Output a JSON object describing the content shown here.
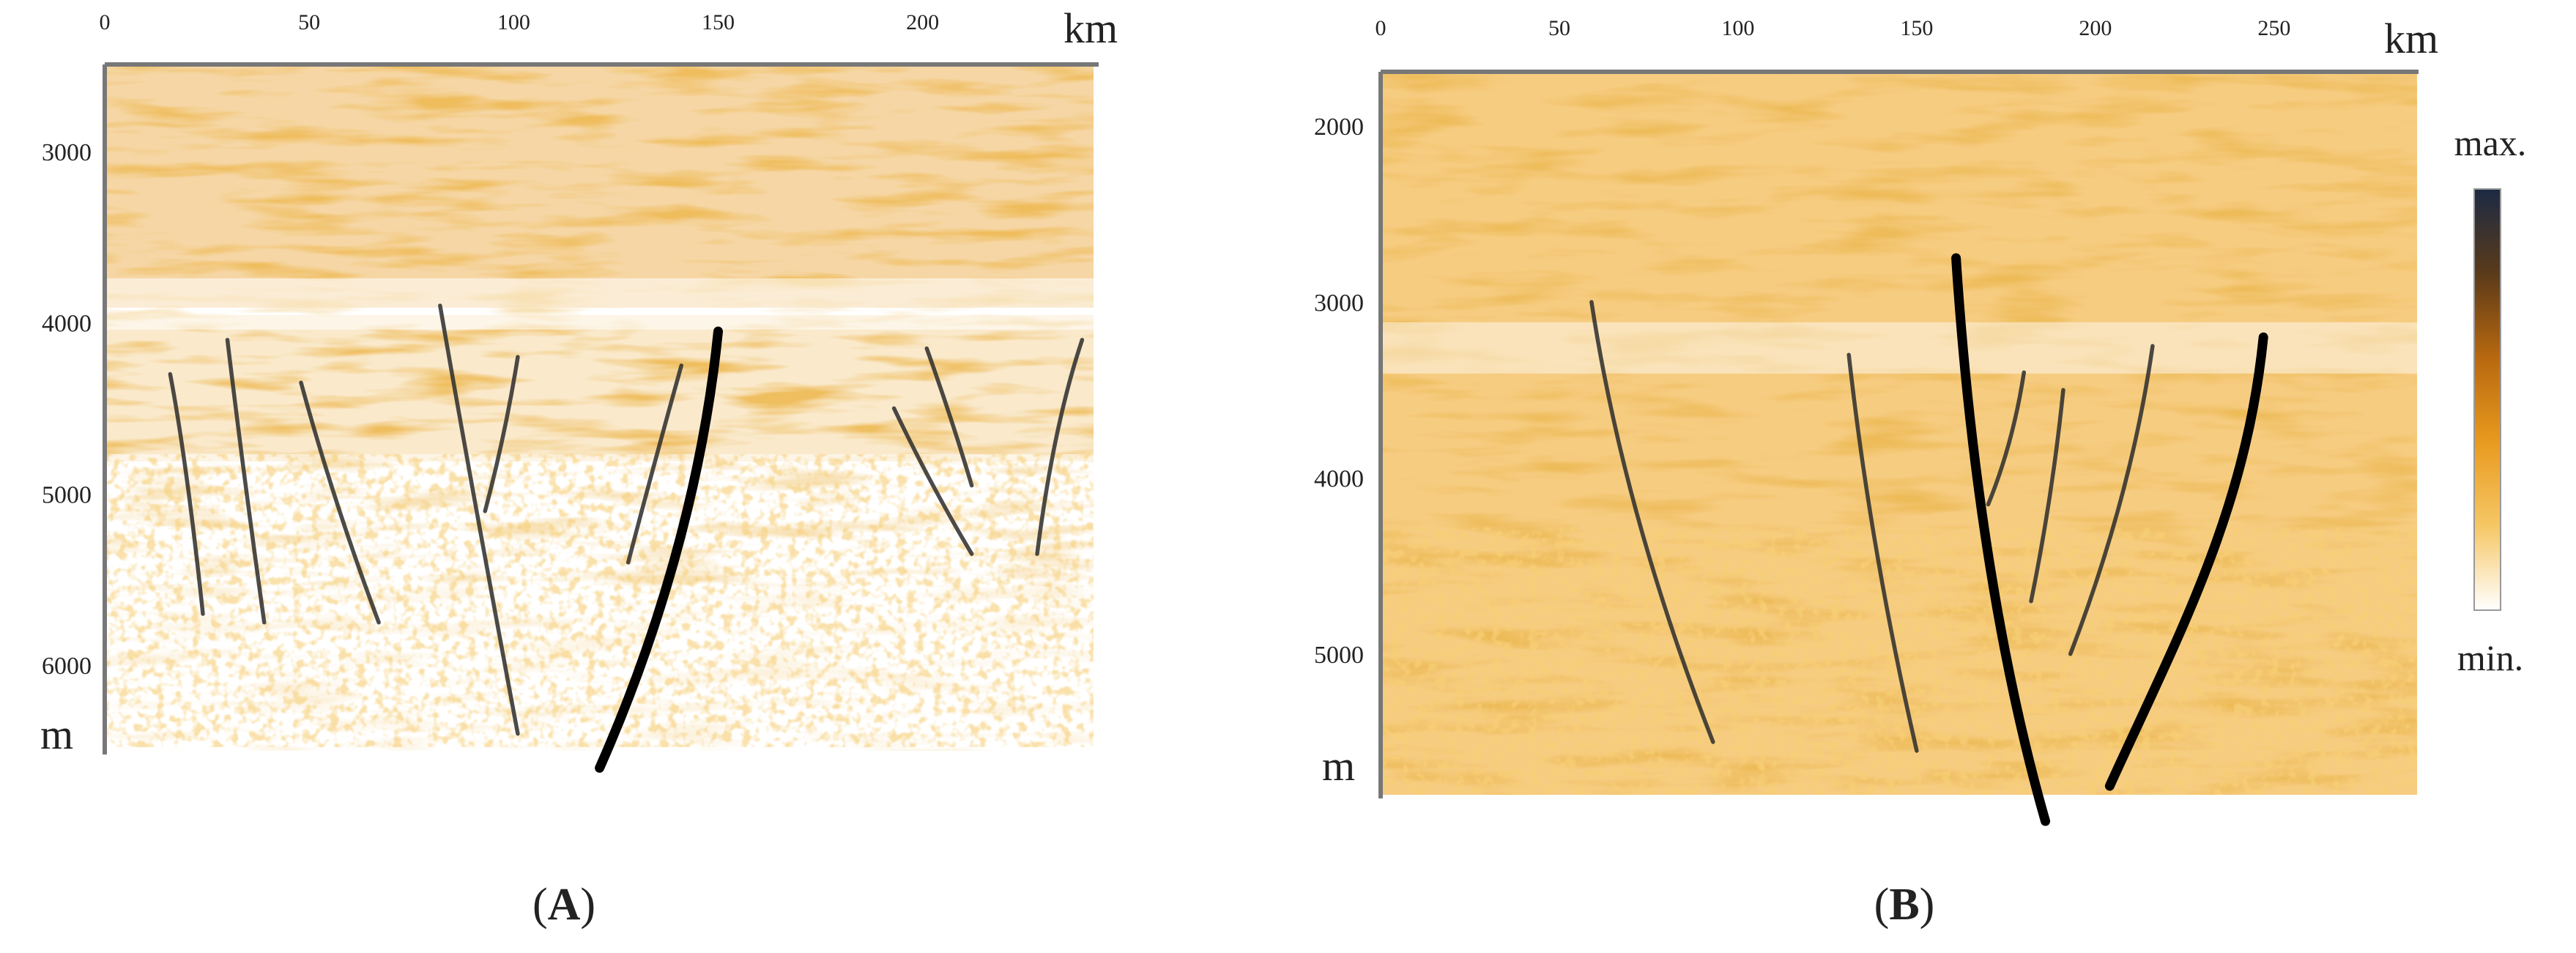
{
  "panels": [
    {
      "id": "A",
      "caption_open": "(",
      "caption_letter": "A",
      "caption_close": ")",
      "x_unit": "km",
      "y_unit": "m",
      "x_ticks": [
        0,
        50,
        100,
        150,
        200
      ],
      "y_ticks": [
        3000,
        4000,
        5000,
        6000
      ],
      "x_range": [
        0,
        240
      ],
      "y_range": [
        2500,
        6500
      ],
      "faults": [
        {
          "weight": "thin",
          "points": [
            [
              16,
              4300
            ],
            [
              20,
              4800
            ],
            [
              24,
              5700
            ]
          ]
        },
        {
          "weight": "thin",
          "points": [
            [
              30,
              4100
            ],
            [
              34,
              4900
            ],
            [
              39,
              5750
            ]
          ]
        },
        {
          "weight": "thin",
          "points": [
            [
              48,
              4350
            ],
            [
              56,
              5050
            ],
            [
              67,
              5750
            ]
          ]
        },
        {
          "weight": "thin",
          "points": [
            [
              82,
              3900
            ],
            [
              90,
              5000
            ],
            [
              101,
              6400
            ]
          ]
        },
        {
          "weight": "thin",
          "points": [
            [
              101,
              4200
            ],
            [
              98,
              4650
            ],
            [
              93,
              5100
            ]
          ]
        },
        {
          "weight": "thin",
          "points": [
            [
              141,
              4250
            ],
            [
              134,
              4850
            ],
            [
              128,
              5400
            ]
          ]
        },
        {
          "weight": "thick",
          "points": [
            [
              150,
              4050
            ],
            [
              146,
              5000
            ],
            [
              134,
              5900
            ],
            [
              121,
              6600
            ]
          ]
        },
        {
          "weight": "thin",
          "points": [
            [
              193,
              4500
            ],
            [
              202,
              4950
            ],
            [
              212,
              5350
            ]
          ]
        },
        {
          "weight": "thin",
          "points": [
            [
              201,
              4150
            ],
            [
              207,
              4550
            ],
            [
              212,
              4950
            ]
          ]
        },
        {
          "weight": "thin",
          "points": [
            [
              239,
              4100
            ],
            [
              232,
              4600
            ],
            [
              228,
              5350
            ]
          ]
        }
      ]
    },
    {
      "id": "B",
      "caption_open": "(",
      "caption_letter": "B",
      "caption_close": ")",
      "x_unit": "km",
      "y_unit": "m",
      "x_ticks": [
        0,
        50,
        100,
        150,
        200,
        250
      ],
      "y_ticks": [
        2000,
        3000,
        4000,
        5000
      ],
      "x_range": [
        0,
        290
      ],
      "y_range": [
        1700,
        5800
      ],
      "faults": [
        {
          "weight": "thin",
          "points": [
            [
              59,
              3000
            ],
            [
              68,
              4200
            ],
            [
              93,
              5500
            ]
          ]
        },
        {
          "weight": "thin",
          "points": [
            [
              131,
              3300
            ],
            [
              137,
              4400
            ],
            [
              150,
              5550
            ]
          ]
        },
        {
          "weight": "thick",
          "points": [
            [
              161,
              2750
            ],
            [
              165,
              4000
            ],
            [
              174,
              5100
            ],
            [
              186,
              5950
            ]
          ]
        },
        {
          "weight": "thin",
          "points": [
            [
              180,
              3400
            ],
            [
              177,
              3800
            ],
            [
              170,
              4150
            ]
          ]
        },
        {
          "weight": "thin",
          "points": [
            [
              191,
              3500
            ],
            [
              188,
              4100
            ],
            [
              182,
              4700
            ]
          ]
        },
        {
          "weight": "thin",
          "points": [
            [
              216,
              3250
            ],
            [
              210,
              4100
            ],
            [
              193,
              5000
            ]
          ]
        },
        {
          "weight": "thick",
          "points": [
            [
              247,
              3200
            ],
            [
              242,
              4200
            ],
            [
              223,
              4900
            ],
            [
              204,
              5750
            ]
          ]
        }
      ]
    }
  ],
  "colorbar": {
    "max_label": "max.",
    "min_label": "min.",
    "colors": [
      "#ffffff",
      "#f6c765",
      "#e89a1e",
      "#b8680f",
      "#5a3a1a",
      "#1c2a44"
    ]
  },
  "seismic_colors": {
    "light": "#f7d080",
    "mid": "#e6a033",
    "dark": "#9a5a12"
  }
}
